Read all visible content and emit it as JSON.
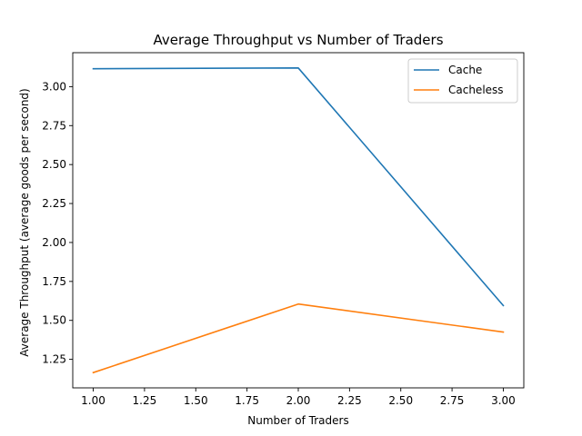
{
  "chart_data": {
    "type": "line",
    "title": "Average Throughput vs Number of Traders",
    "xlabel": "Number of Traders",
    "ylabel": "Average Throughput (average goods per second)",
    "x": [
      1.0,
      2.0,
      3.0
    ],
    "series": [
      {
        "name": "Cache",
        "color": "#1f77b4",
        "values": [
          3.115,
          3.12,
          1.595
        ]
      },
      {
        "name": "Cacheless",
        "color": "#ff7f0e",
        "values": [
          1.165,
          1.605,
          1.425
        ]
      }
    ],
    "xlim": [
      0.9,
      3.1
    ],
    "ylim": [
      1.067,
      3.218
    ],
    "xticks": [
      1.0,
      1.25,
      1.5,
      1.75,
      2.0,
      2.25,
      2.5,
      2.75,
      3.0
    ],
    "xtick_labels": [
      "1.00",
      "1.25",
      "1.50",
      "1.75",
      "2.00",
      "2.25",
      "2.50",
      "2.75",
      "3.00"
    ],
    "yticks": [
      1.25,
      1.5,
      1.75,
      2.0,
      2.25,
      2.5,
      2.75,
      3.0
    ],
    "ytick_labels": [
      "1.25",
      "1.50",
      "1.75",
      "2.00",
      "2.25",
      "2.50",
      "2.75",
      "3.00"
    ],
    "grid": false,
    "legend_position": "top-right"
  }
}
